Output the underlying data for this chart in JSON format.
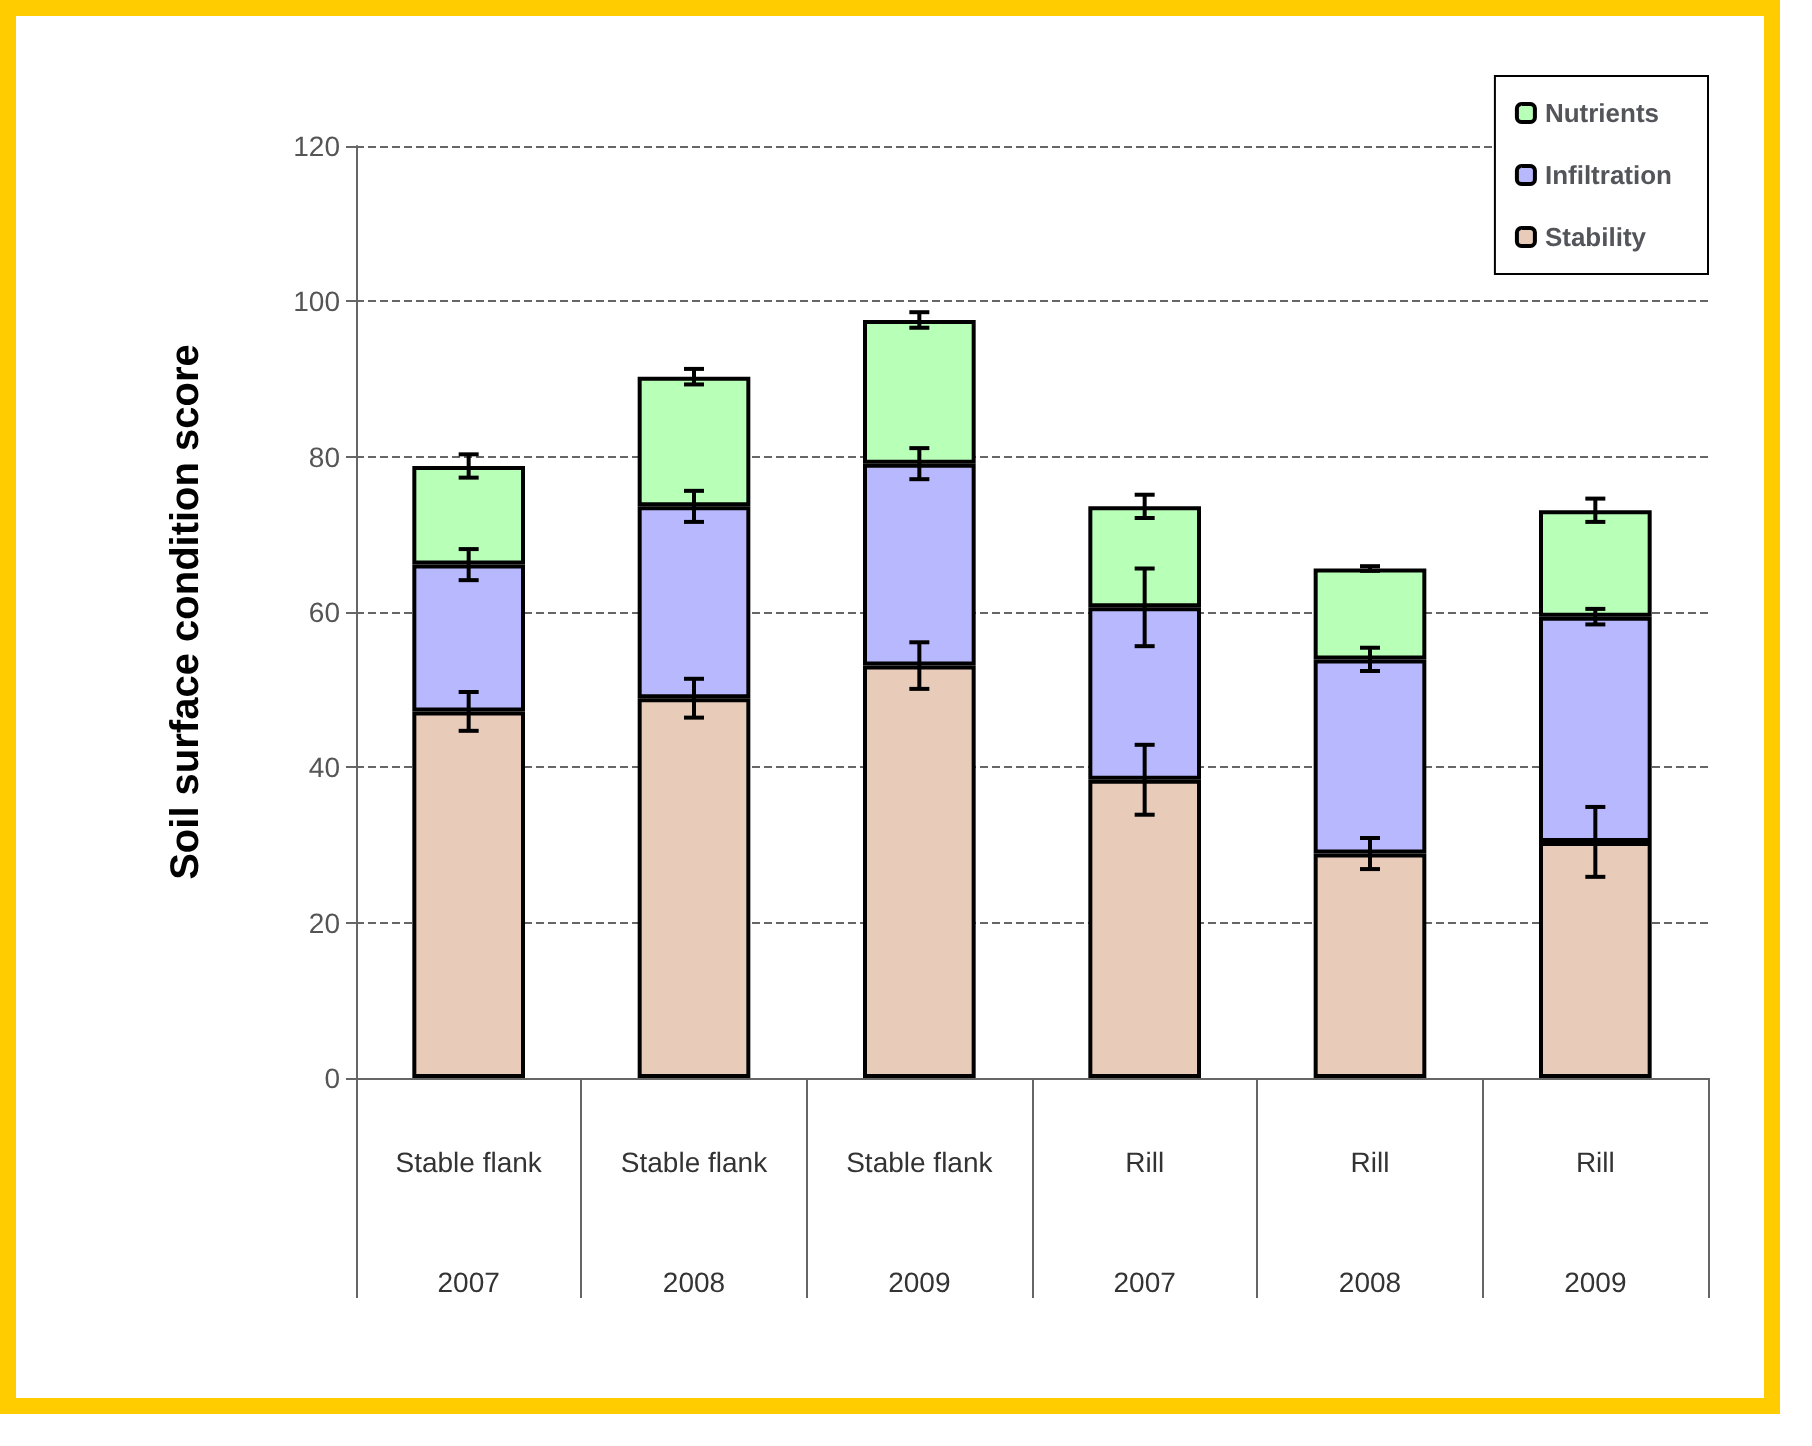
{
  "chart_data": {
    "type": "bar",
    "stacked": true,
    "ylabel": "Soil surface condition score",
    "categories": [
      "Stable flank\n2007",
      "Stable flank\n2008",
      "Stable flank\n2009",
      "Rill\n2007",
      "Rill\n2008",
      "Rill\n2009"
    ],
    "series": [
      {
        "name": "Stability",
        "color": "#e8cbb8",
        "values": [
          47.2,
          48.9,
          53.1,
          38.4,
          28.9,
          30.4
        ],
        "errors": [
          2.5,
          2.5,
          3,
          4.5,
          2,
          4.5
        ]
      },
      {
        "name": "Infiltration",
        "color": "#b8b8ff",
        "values": [
          18.9,
          24.7,
          26.0,
          22.2,
          25.0,
          29.0
        ],
        "errors": [
          2,
          2,
          2,
          5,
          1.5,
          1
        ]
      },
      {
        "name": "Nutrients",
        "color": "#b8ffb8",
        "values": [
          12.7,
          16.7,
          18.5,
          13.0,
          11.7,
          13.7
        ],
        "errors": [
          1.5,
          1,
          1,
          1.5,
          0.3,
          1.5
        ]
      }
    ],
    "ylim": [
      0,
      120
    ],
    "yticks": [
      0,
      20,
      40,
      60,
      80,
      100,
      120
    ],
    "grid": "y",
    "legend": "top right"
  }
}
